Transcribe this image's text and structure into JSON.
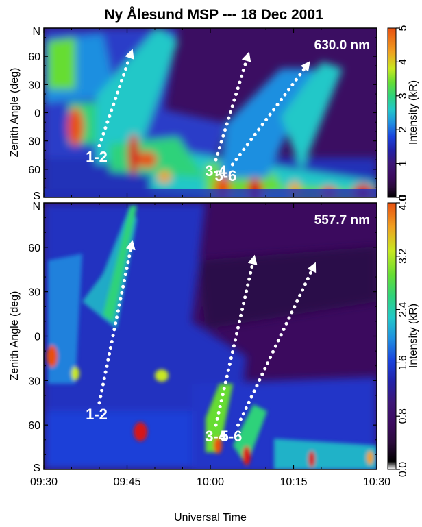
{
  "figure_title": "Ny Ålesund MSP --- 18 Dec 2001",
  "colors": {
    "palette": [
      "#000000",
      "#3b0a5e",
      "#3d1676",
      "#2222a8",
      "#1a44dd",
      "#1f8fe0",
      "#22c8c8",
      "#2fd27a",
      "#66dd33",
      "#c8e820",
      "#f0a020",
      "#e85010",
      "#d81818"
    ]
  },
  "chart_data": [
    {
      "type": "heatmap",
      "title": "630.0 nm",
      "xlabel": "",
      "ylabel": "Zenith Angle  (deg)",
      "x_ticks": [
        "09:30",
        "09:45",
        "10:00",
        "10:15",
        "10:30"
      ],
      "x_range": [
        "09:30",
        "10:30"
      ],
      "y_ticks": [
        "60",
        "30",
        "0",
        "30",
        "60"
      ],
      "y_end_labels": {
        "top": "N",
        "bottom": "S"
      },
      "y_range": [
        -90,
        90
      ],
      "colorbar": {
        "label": "Intensity (kR)",
        "ticks": [
          "0",
          "1",
          "2",
          "3",
          "4",
          "5"
        ],
        "range": [
          0,
          5
        ]
      },
      "arrows": [
        {
          "label": "1-2",
          "start": [
            "09:40",
            -35
          ],
          "end": [
            "09:46",
            68
          ]
        },
        {
          "label": "3-4",
          "start": [
            "10:01",
            -50
          ],
          "end": [
            "10:07",
            65
          ]
        },
        {
          "label": "5-6",
          "start": [
            "10:04",
            -55
          ],
          "end": [
            "10:18",
            55
          ]
        }
      ]
    },
    {
      "type": "heatmap",
      "title": "557.7 nm",
      "xlabel": "Universal Time",
      "ylabel": "Zenith Angle  (deg)",
      "x_ticks": [
        "09:30",
        "09:45",
        "10:00",
        "10:15",
        "10:30"
      ],
      "x_range": [
        "09:30",
        "10:30"
      ],
      "y_ticks": [
        "60",
        "30",
        "0",
        "30",
        "60"
      ],
      "y_end_labels": {
        "top": "N",
        "bottom": "S"
      },
      "y_range": [
        -90,
        90
      ],
      "colorbar": {
        "label": "Intensity (kR)",
        "ticks": [
          "0.0",
          "0.8",
          "1.6",
          "2.4",
          "3.2",
          "4.0"
        ],
        "range": [
          0,
          4
        ]
      },
      "arrows": [
        {
          "label": "1-2",
          "start": [
            "09:40",
            -45
          ],
          "end": [
            "09:46",
            65
          ]
        },
        {
          "label": "3-4",
          "start": [
            "10:01",
            -60
          ],
          "end": [
            "10:08",
            55
          ]
        },
        {
          "label": "5-6",
          "start": [
            "10:05",
            -60
          ],
          "end": [
            "10:19",
            50
          ]
        }
      ]
    }
  ]
}
